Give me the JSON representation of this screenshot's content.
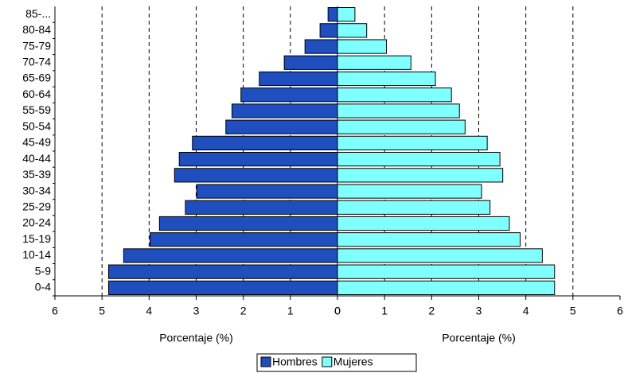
{
  "chart_data": {
    "type": "pyramid",
    "categories": [
      "0-4",
      "5-9",
      "10-14",
      "15-19",
      "20-24",
      "25-29",
      "30-34",
      "35-39",
      "40-44",
      "45-49",
      "50-54",
      "55-59",
      "60-64",
      "65-69",
      "70-74",
      "75-79",
      "80-84",
      "85-..."
    ],
    "series": [
      {
        "name": "Hombres",
        "color": "#1f4fbf",
        "side": "left",
        "values": [
          4.86,
          4.86,
          4.54,
          3.98,
          3.78,
          3.23,
          2.99,
          3.46,
          3.36,
          3.08,
          2.37,
          2.24,
          2.05,
          1.66,
          1.13,
          0.69,
          0.37,
          0.2
        ]
      },
      {
        "name": "Mujeres",
        "color": "#80ffff",
        "side": "right",
        "values": [
          4.61,
          4.61,
          4.35,
          3.88,
          3.65,
          3.24,
          3.06,
          3.51,
          3.45,
          3.18,
          2.71,
          2.59,
          2.42,
          2.08,
          1.56,
          1.04,
          0.62,
          0.37
        ]
      }
    ],
    "xlim": [
      0,
      6
    ],
    "xticks": [
      0,
      1,
      2,
      3,
      4,
      5,
      6
    ],
    "x_label": "Porcentaje (%)",
    "grid": true,
    "legend": "bottom"
  }
}
